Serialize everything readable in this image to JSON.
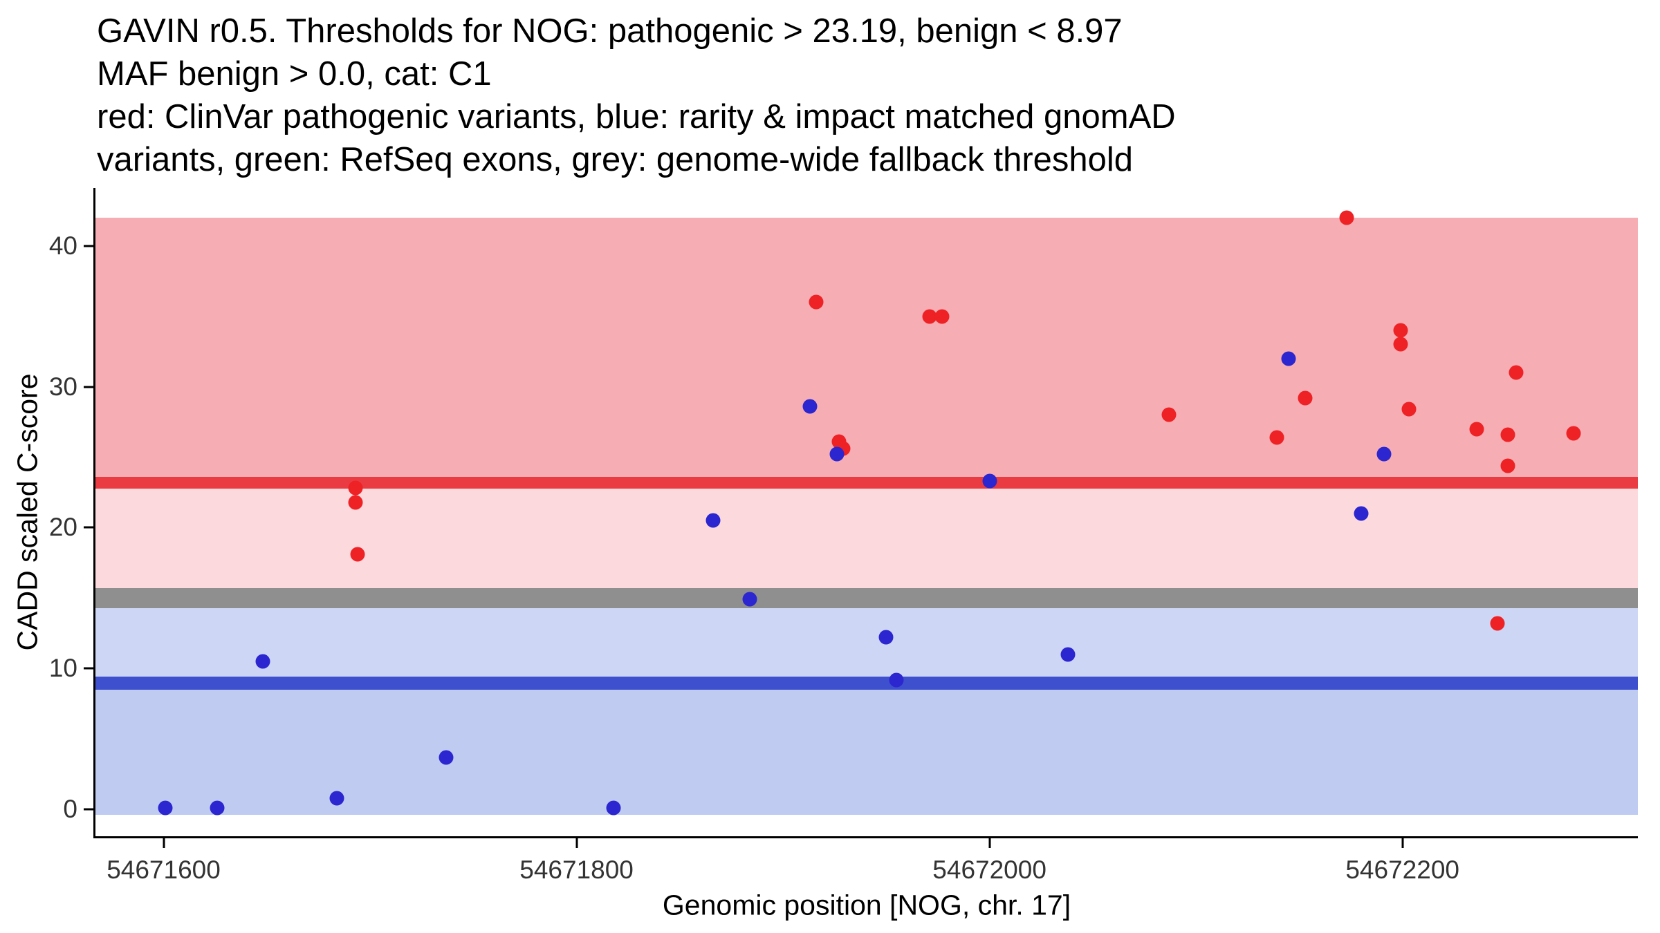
{
  "chart_data": {
    "type": "scatter",
    "title_lines": [
      "GAVIN r0.5. Thresholds for NOG: pathogenic > 23.19, benign < 8.97",
      "MAF benign > 0.0, cat: C1",
      "red: ClinVar pathogenic variants, blue: rarity & impact matched gnomAD",
      "variants, green: RefSeq exons, grey: genome-wide fallback threshold"
    ],
    "xlabel": "Genomic position [NOG, chr. 17]",
    "ylabel": "CADD scaled C-score",
    "x_ticks": [
      54671600,
      54671800,
      54672000,
      54672200
    ],
    "x_tick_labels": [
      "54671600",
      "54671800",
      "54672000",
      "54672200"
    ],
    "y_ticks": [
      0,
      10,
      20,
      30,
      40
    ],
    "y_tick_labels": [
      "0",
      "10",
      "20",
      "30",
      "40"
    ],
    "xlim": [
      54671567,
      54672314
    ],
    "ylim": [
      -1.9,
      44.1
    ],
    "grid": false,
    "legend_position": "none",
    "thresholds": {
      "pathogenic_gt": 23.19,
      "benign_lt": 8.97,
      "genome_wide_fallback": 15
    },
    "bands": [
      {
        "name": "pathogenic-zone-band",
        "from": 23.19,
        "to": 42.0,
        "color": "#f6adb3"
      },
      {
        "name": "upper-uncertain-zone-band",
        "from": 15.0,
        "to": 23.19,
        "color": "#fbd9dd"
      },
      {
        "name": "lower-uncertain-zone-band",
        "from": 8.97,
        "to": 15.0,
        "color": "#cdd6f4"
      },
      {
        "name": "benign-zone-band",
        "from": -0.4,
        "to": 8.97,
        "color": "#bfcbf1"
      }
    ],
    "lines": [
      {
        "name": "fallback-threshold-line",
        "y": 15.0,
        "half_width": 0.72,
        "color": "#8f8f8f"
      },
      {
        "name": "pathogenic-threshold-line",
        "y": 23.19,
        "half_width": 0.42,
        "color": "#ea3b42"
      },
      {
        "name": "benign-threshold-line",
        "y": 8.97,
        "half_width": 0.45,
        "color": "#3e50ce"
      }
    ],
    "series": [
      {
        "name": "ClinVar pathogenic variants",
        "dom_name": "clinvar-pathogenic-point",
        "color": "#ee2125",
        "points": [
          [
            54671693,
            22.8
          ],
          [
            54671693,
            21.8
          ],
          [
            54671694,
            18.1
          ],
          [
            54671916,
            36.0
          ],
          [
            54671927,
            26.1
          ],
          [
            54671929,
            25.6
          ],
          [
            54671971,
            35.0
          ],
          [
            54671977,
            35.0
          ],
          [
            54672087,
            28.0
          ],
          [
            54672139,
            26.4
          ],
          [
            54672153,
            29.2
          ],
          [
            54672173,
            42.0
          ],
          [
            54672199,
            34.0
          ],
          [
            54672199,
            33.0
          ],
          [
            54672203,
            28.4
          ],
          [
            54672236,
            27.0
          ],
          [
            54672246,
            13.2
          ],
          [
            54672251,
            26.6
          ],
          [
            54672251,
            24.4
          ],
          [
            54672255,
            31.0
          ],
          [
            54672283,
            26.7
          ]
        ]
      },
      {
        "name": "rarity & impact matched gnomAD variants",
        "dom_name": "gnomad-matched-point",
        "color": "#2b26cf",
        "points": [
          [
            54671601,
            0.1
          ],
          [
            54671626,
            0.1
          ],
          [
            54671648,
            10.5
          ],
          [
            54671684,
            0.8
          ],
          [
            54671737,
            3.7
          ],
          [
            54671818,
            0.1
          ],
          [
            54671866,
            20.5
          ],
          [
            54671884,
            14.9
          ],
          [
            54671913,
            28.6
          ],
          [
            54671926,
            25.2
          ],
          [
            54671950,
            12.2
          ],
          [
            54671955,
            9.2
          ],
          [
            54672000,
            23.3
          ],
          [
            54672038,
            11.0
          ],
          [
            54672145,
            32.0
          ],
          [
            54672180,
            21.0
          ],
          [
            54672191,
            25.2
          ]
        ]
      }
    ]
  }
}
